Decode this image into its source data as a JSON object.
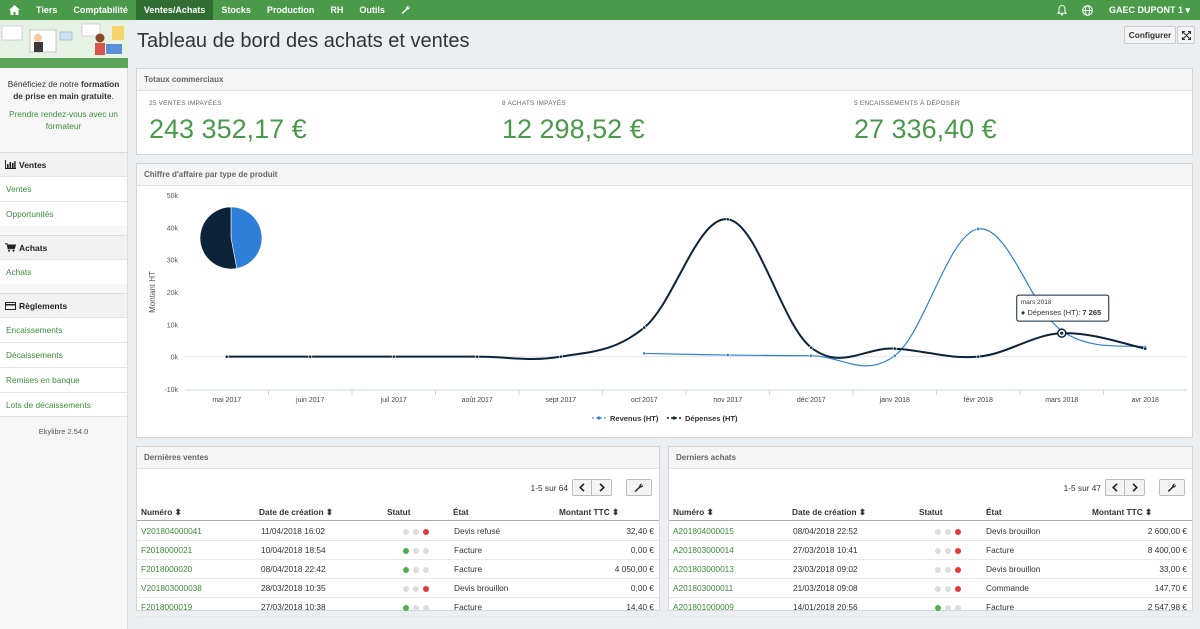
{
  "nav": {
    "items": [
      "Tiers",
      "Comptabilité",
      "Ventes/Achats",
      "Stocks",
      "Production",
      "RH",
      "Outils"
    ],
    "active": "Ventes/Achats",
    "user": "GAEC DUPONT 1 ▾"
  },
  "sidebar": {
    "promo_pre": "Bénéficiez de notre ",
    "promo_bold": "formation de prise en main gratuite",
    "promo_post": ".",
    "promo_link": "Prendre rendez-vous avec un formateur",
    "sections": [
      {
        "title": "Ventes",
        "links": [
          "Ventes",
          "Opportunités"
        ]
      },
      {
        "title": "Achats",
        "links": [
          "Achats"
        ]
      },
      {
        "title": "Règlements",
        "links": [
          "Encaissements",
          "Décaissements",
          "Remises en banque",
          "Lots de décaissements"
        ]
      }
    ],
    "version": "Ekylibre 2.54.0"
  },
  "page": {
    "title": "Tableau de bord des achats et ventes",
    "configure": "Configurer"
  },
  "totals": {
    "title": "Totaux commerciaux",
    "items": [
      {
        "label": "25 ventes impayées",
        "value": "243 352,17 €"
      },
      {
        "label": "8 achats impayés",
        "value": "12 298,52 €"
      },
      {
        "label": "5 encaissements à déposer",
        "value": "27 336,40 €"
      }
    ]
  },
  "chart": {
    "title": "Chiffre d'affaire par type de produit",
    "tooltip_date": "mars 2018",
    "tooltip_label": "Dépenses (HT): ",
    "tooltip_value": "7 265"
  },
  "chart_data": {
    "type": "line",
    "ylabel": "Montant HT",
    "ylim": [
      -10000,
      50000
    ],
    "yticks": [
      "-10k",
      "0k",
      "10k",
      "20k",
      "30k",
      "40k",
      "50k"
    ],
    "categories": [
      "mai 2017",
      "juin 2017",
      "juil 2017",
      "août 2017",
      "sept 2017",
      "oct 2017",
      "nov 2017",
      "déc 2017",
      "janv 2018",
      "févr 2018",
      "mars 2018",
      "avr 2018"
    ],
    "series": [
      {
        "name": "Revenus (HT)",
        "color": "#2f7ed8",
        "values": [
          0,
          0,
          0,
          0,
          0,
          1000,
          500,
          300,
          300,
          39500,
          8000,
          3000
        ]
      },
      {
        "name": "Dépenses (HT)",
        "color": "#0d233a",
        "values": [
          0,
          0,
          0,
          0,
          0,
          9000,
          42500,
          2800,
          2500,
          0,
          7265,
          2500
        ]
      }
    ],
    "pie": [
      {
        "name": "Revenus (HT)",
        "value": 0.47,
        "color": "#2f7ed8"
      },
      {
        "name": "Dépenses (HT)",
        "value": 0.53,
        "color": "#0d233a"
      }
    ],
    "legend": "bottom-center"
  },
  "sales": {
    "title": "Dernières ventes",
    "pager": "1-5 sur 64",
    "columns": [
      "Numéro ⬍",
      "Date de création ⬍",
      "Statut",
      "État",
      "Montant TTC ⬍"
    ],
    "rows": [
      {
        "num": "V201804000041",
        "date": "11/04/2018 16:02",
        "status": "red",
        "state": "Devis refusé",
        "amount": "32,40 €"
      },
      {
        "num": "F2018000021",
        "date": "10/04/2018 18:54",
        "status": "green",
        "state": "Facture",
        "amount": "0,00 €"
      },
      {
        "num": "F2018000020",
        "date": "08/04/2018 22:42",
        "status": "green",
        "state": "Facture",
        "amount": "4 050,00 €"
      },
      {
        "num": "V201803000038",
        "date": "28/03/2018 10:35",
        "status": "red",
        "state": "Devis brouillon",
        "amount": "0,00 €"
      },
      {
        "num": "F2018000019",
        "date": "27/03/2018 10:38",
        "status": "green",
        "state": "Facture",
        "amount": "14,40 €"
      }
    ]
  },
  "purchases": {
    "title": "Derniers achats",
    "pager": "1-5 sur 47",
    "columns": [
      "Numéro ⬍",
      "Date de création ⬍",
      "Statut",
      "État",
      "Montant TTC ⬍"
    ],
    "rows": [
      {
        "num": "A201804000015",
        "date": "08/04/2018 22:52",
        "status": "red",
        "state": "Devis brouillon",
        "amount": "2 600,00 €"
      },
      {
        "num": "A201803000014",
        "date": "27/03/2018 10:41",
        "status": "red",
        "state": "Facture",
        "amount": "8 400,00 €"
      },
      {
        "num": "A201803000013",
        "date": "23/03/2018 09:02",
        "status": "red",
        "state": "Devis brouillon",
        "amount": "33,00 €"
      },
      {
        "num": "A201803000011",
        "date": "21/03/2018 09:08",
        "status": "red",
        "state": "Commande",
        "amount": "147,70 €"
      },
      {
        "num": "A201801000009",
        "date": "14/01/2018 20:56",
        "status": "green",
        "state": "Facture",
        "amount": "2 547,98 €"
      }
    ]
  }
}
